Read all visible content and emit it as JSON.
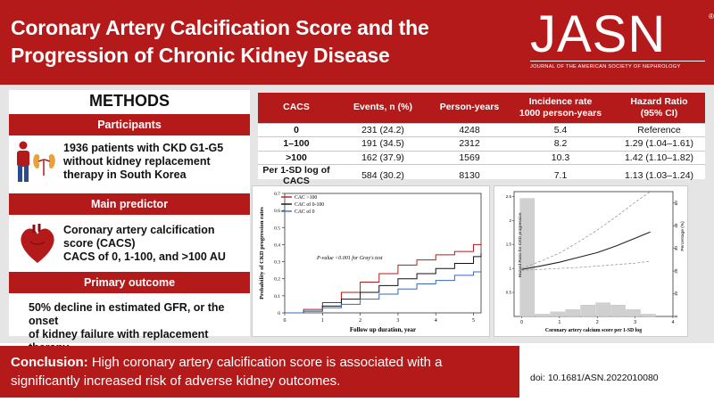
{
  "header": {
    "title_line1": "Coronary Artery Calcification Score and the",
    "title_line2": "Progression of Chronic Kidney Disease",
    "logo_text": "JASN",
    "logo_reg": "®",
    "logo_subtitle": "JOURNAL OF THE AMERICAN SOCIETY OF NEPHROLOGY"
  },
  "methods": {
    "title": "METHODS",
    "participants_label": "Participants",
    "participants_text": [
      "1936 patients with CKD G1-G5",
      "without kidney replacement",
      "therapy in South Korea"
    ],
    "predictor_label": "Main predictor",
    "predictor_text": [
      "Coronary artery calcification",
      "score (CACS)",
      "CACS of 0, 1-100, and >100 AU"
    ],
    "outcome_label": "Primary outcome",
    "outcome_text": [
      "50% decline in estimated GFR, or the onset",
      "of kidney failure with replacement therapy"
    ]
  },
  "table": {
    "headers": [
      "CACS",
      "Events, n (%)",
      "Person-years",
      "Incidence rate\n1000 person-years",
      "Hazard Ratio\n(95% CI)"
    ],
    "rows": [
      [
        "0",
        "231 (24.2)",
        "4248",
        "5.4",
        "Reference"
      ],
      [
        "1–100",
        "191 (34.5)",
        "2312",
        "8.2",
        "1.29 (1.04–1.61)"
      ],
      [
        ">100",
        "162 (37.9)",
        "1569",
        "10.3",
        "1.42 (1.10–1.82)"
      ],
      [
        "Per 1-SD log of CACS",
        "584 (30.2)",
        "8130",
        "7.1",
        "1.13 (1.03–1.24)"
      ]
    ]
  },
  "chart_data": [
    {
      "type": "line",
      "ylabel": "Probability of CKD progression rates",
      "xlabel": "Follow up duration, year",
      "xlim": [
        0,
        5.2
      ],
      "ylim": [
        0,
        0.7
      ],
      "xticks": [
        "0",
        "1",
        "2",
        "3",
        "4",
        "5"
      ],
      "yticks": [
        "0",
        "0.1",
        "0.2",
        "0.3",
        "0.4",
        "0.5",
        "0.6",
        "0.7"
      ],
      "annotation": "P-value <0.001 for Gray's test",
      "series": [
        {
          "name": "CAC >100",
          "color": "#b51a1a",
          "x": [
            0,
            0.5,
            1,
            1.5,
            2,
            2.5,
            3,
            3.5,
            4,
            4.5,
            5,
            5.2
          ],
          "y": [
            0,
            0.02,
            0.06,
            0.12,
            0.18,
            0.23,
            0.28,
            0.31,
            0.34,
            0.36,
            0.4,
            0.41
          ]
        },
        {
          "name": "CAC of 0-100",
          "color": "#111111",
          "x": [
            0,
            0.5,
            1,
            1.5,
            2,
            2.5,
            3,
            3.5,
            4,
            4.5,
            5,
            5.2
          ],
          "y": [
            0,
            0.01,
            0.04,
            0.08,
            0.12,
            0.16,
            0.2,
            0.23,
            0.26,
            0.29,
            0.33,
            0.35
          ]
        },
        {
          "name": "CAC of 0",
          "color": "#3a68b5",
          "x": [
            0,
            0.5,
            1,
            1.5,
            2,
            2.5,
            3,
            3.5,
            4,
            4.5,
            5,
            5.2
          ],
          "y": [
            0,
            0.01,
            0.03,
            0.05,
            0.08,
            0.11,
            0.14,
            0.17,
            0.19,
            0.22,
            0.24,
            0.25
          ]
        }
      ]
    },
    {
      "type": "line",
      "ylabel": "Hazard Ratio for CKD progression",
      "y2label": "Percentage (%)",
      "xlabel": "Coronary artery calcium score per 1-SD log",
      "xlim": [
        -0.2,
        4
      ],
      "ylim": [
        0,
        2.6
      ],
      "xticks": [
        "0",
        "1",
        "2",
        "3",
        "4"
      ],
      "yticks": [
        "0.5",
        "1",
        "1.5",
        "2",
        "2.5"
      ],
      "y2ticks": [
        "0",
        "10",
        "20",
        "30",
        "40",
        "50"
      ],
      "histogram": [
        {
          "x": 0.15,
          "pct": 52
        },
        {
          "x": 0.55,
          "pct": 1
        },
        {
          "x": 0.95,
          "pct": 2
        },
        {
          "x": 1.35,
          "pct": 3
        },
        {
          "x": 1.75,
          "pct": 5
        },
        {
          "x": 2.15,
          "pct": 6
        },
        {
          "x": 2.55,
          "pct": 5
        },
        {
          "x": 2.95,
          "pct": 3
        },
        {
          "x": 3.35,
          "pct": 1
        }
      ],
      "series": [
        {
          "name": "HR",
          "x": [
            0,
            0.5,
            1,
            1.5,
            2,
            2.5,
            3,
            3.4
          ],
          "y": [
            0.98,
            1.05,
            1.13,
            1.23,
            1.33,
            1.47,
            1.63,
            1.76
          ]
        },
        {
          "name": "Upper CI",
          "dashed": true,
          "x": [
            0,
            0.5,
            1,
            1.5,
            2,
            2.5,
            3,
            3.4
          ],
          "y": [
            1.0,
            1.15,
            1.32,
            1.55,
            1.8,
            2.08,
            2.38,
            2.6
          ]
        },
        {
          "name": "Lower CI",
          "dashed": true,
          "x": [
            0,
            0.5,
            1,
            1.5,
            2,
            2.5,
            3,
            3.4
          ],
          "y": [
            0.96,
            0.98,
            1.0,
            1.02,
            1.05,
            1.08,
            1.11,
            1.15
          ]
        }
      ]
    }
  ],
  "conclusion": {
    "label": "Conclusion:",
    "text_line1": " High coronary artery calcification score is associated with a",
    "text_line2": "significantly increased risk of adverse kidney outcomes."
  },
  "doi": "doi: 10.1681/ASN.2022010080",
  "colors": {
    "brand": "#b51a1a",
    "panel_bg": "#e5e5e5"
  }
}
